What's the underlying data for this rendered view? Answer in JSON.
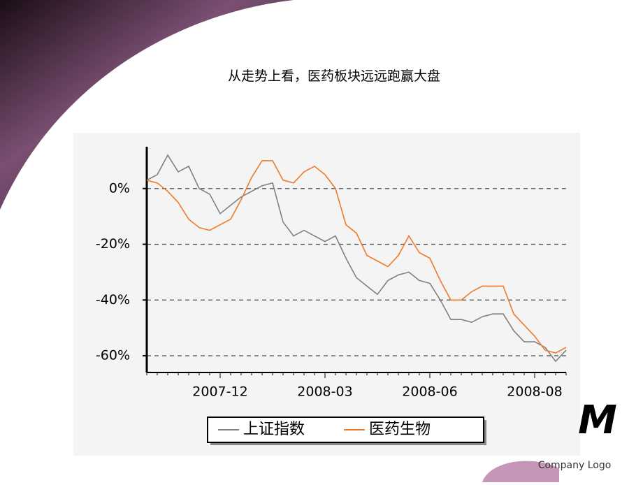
{
  "slide": {
    "title": "从走势上看，医药板块远远跑赢大盘"
  },
  "logo": {
    "mark": "M",
    "caption": "Company Logo"
  },
  "chart_data": {
    "type": "line",
    "categories": [
      null,
      null,
      null,
      null,
      null,
      null,
      null,
      "2007-12",
      null,
      null,
      null,
      null,
      null,
      null,
      null,
      null,
      null,
      "2008-03",
      null,
      null,
      null,
      null,
      null,
      null,
      null,
      null,
      null,
      "2008-06",
      null,
      null,
      null,
      null,
      null,
      null,
      null,
      null,
      null,
      "2008-08",
      null,
      null,
      null
    ],
    "series": [
      {
        "name": "上证指数",
        "color": "#808080",
        "values": [
          3,
          5,
          12,
          6,
          8,
          0,
          -2,
          -9,
          -6,
          -3,
          -1,
          1,
          2,
          -12,
          -17,
          -15,
          -17,
          -19,
          -17,
          -25,
          -32,
          -35,
          -38,
          -33,
          -31,
          -30,
          -33,
          -34,
          -40,
          -47,
          -47,
          -48,
          -46,
          -45,
          -45,
          -51,
          -55,
          -55,
          -57,
          -62,
          -58
        ]
      },
      {
        "name": "医药生物",
        "color": "#f07a28",
        "values": [
          3,
          2,
          -1,
          -5,
          -11,
          -14,
          -15,
          -13,
          -11,
          -4,
          4,
          10,
          10,
          3,
          2,
          6,
          8,
          5,
          0,
          -13,
          -16,
          -24,
          -26,
          -28,
          -24,
          -17,
          -23,
          -25,
          -33,
          -40,
          -40,
          -37,
          -35,
          -35,
          -35,
          -45,
          -49,
          -53,
          -58,
          -59,
          -57
        ]
      }
    ],
    "ylim": [
      -64,
      15
    ],
    "yticks": [
      {
        "value": 0,
        "label": "0%"
      },
      {
        "value": -20,
        "label": "-20%"
      },
      {
        "value": -40,
        "label": "-40%"
      },
      {
        "value": -60,
        "label": "-60%"
      }
    ],
    "grid": true
  }
}
